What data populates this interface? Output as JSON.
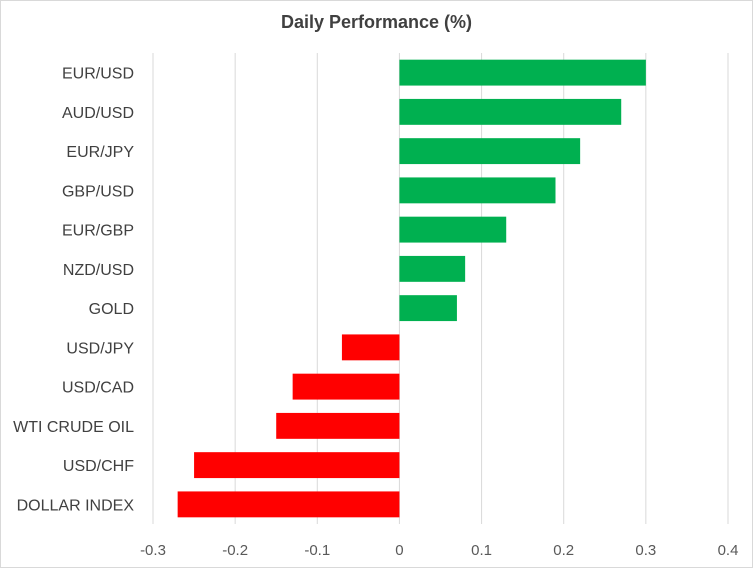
{
  "chart_data": {
    "type": "bar",
    "orientation": "horizontal",
    "title": "Daily Performance (%)",
    "xlabel": "",
    "ylabel": "",
    "categories": [
      "EUR/USD",
      "AUD/USD",
      "EUR/JPY",
      "GBP/USD",
      "EUR/GBP",
      "NZD/USD",
      "GOLD",
      "USD/JPY",
      "USD/CAD",
      "WTI CRUDE OIL",
      "USD/CHF",
      "DOLLAR INDEX"
    ],
    "values": [
      0.3,
      0.27,
      0.22,
      0.19,
      0.13,
      0.08,
      0.07,
      -0.07,
      -0.13,
      -0.15,
      -0.25,
      -0.27
    ],
    "xlim": [
      -0.3,
      0.4
    ],
    "xticks": [
      -0.3,
      -0.2,
      -0.1,
      0,
      0.1,
      0.2,
      0.3,
      0.4
    ],
    "xtick_labels": [
      "-0.3",
      "-0.2",
      "-0.1",
      "0",
      "0.1",
      "0.2",
      "0.3",
      "0.4"
    ],
    "grid": "vertical",
    "legend": "none",
    "colors": {
      "positive": "#00b050",
      "negative": "#ff0000",
      "grid": "#d9d9d9",
      "text": "#404040"
    }
  }
}
